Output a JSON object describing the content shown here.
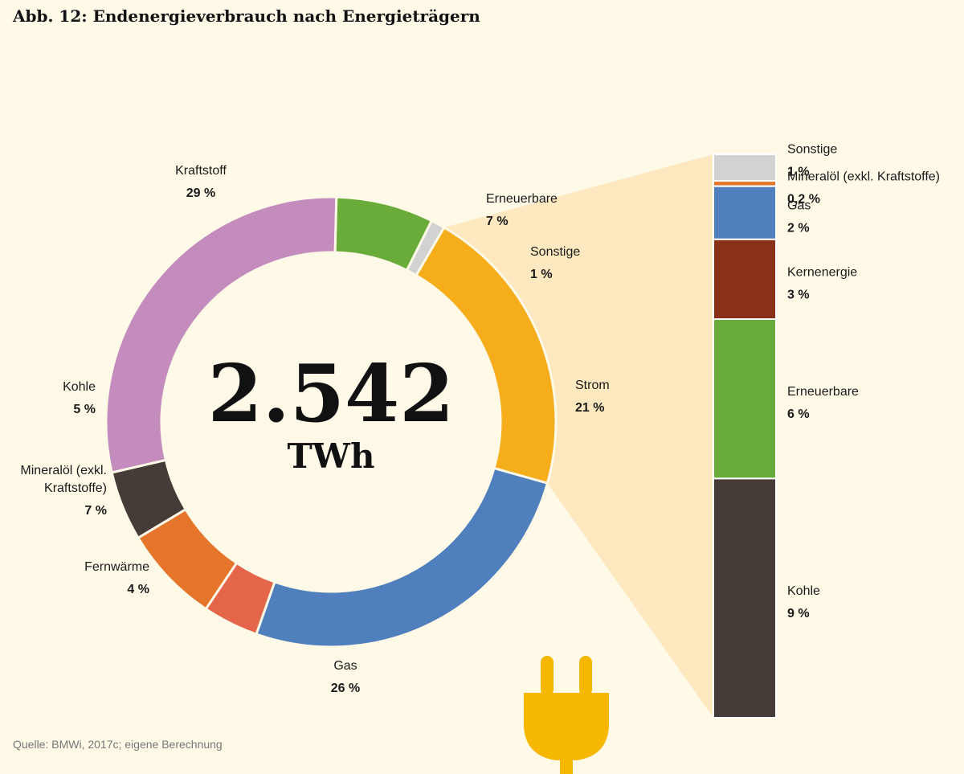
{
  "title": "Abb. 12: Endenergieverbrauch nach Energieträgern",
  "source": "Quelle: BMWi, 2017c; eigene Berechnung",
  "total": {
    "value": "2.542",
    "unit": "TWh"
  },
  "chart_data": [
    {
      "type": "pie",
      "variant": "donut",
      "slices": [
        {
          "name": "Kraftstoff",
          "value": 29,
          "label": "29 %",
          "color": "#c48cbd"
        },
        {
          "name": "Erneuerbare",
          "value": 7,
          "label": "7 %",
          "color": "#6aac3a"
        },
        {
          "name": "Sonstige",
          "value": 1,
          "label": "1 %",
          "color": "#d2d2d2"
        },
        {
          "name": "Strom",
          "value": 21,
          "label": "21 %",
          "color": "#f5ad1b"
        },
        {
          "name": "Gas",
          "value": 26,
          "label": "26 %",
          "color": "#4f7fbd"
        },
        {
          "name": "Fernwärme",
          "value": 4,
          "label": "4 %",
          "color": "#e5654a"
        },
        {
          "name": "Mineralöl (exkl. Kraftstoffe)",
          "value": 7,
          "label": "7 %",
          "color": "#e5752a"
        },
        {
          "name": "Kohle",
          "value": 5,
          "label": "5 %",
          "color": "#463c37"
        }
      ]
    },
    {
      "type": "bar",
      "variant": "stacked",
      "breakdown_of": "Strom",
      "segments": [
        {
          "name": "Sonstige",
          "value": 1,
          "label": "1 %",
          "color": "#d2d2d2"
        },
        {
          "name": "Mineralöl (exkl. Kraftstoffe)",
          "value": 0.2,
          "label": "0,2 %",
          "color": "#e5752a"
        },
        {
          "name": "Gas",
          "value": 2,
          "label": "2 %",
          "color": "#4f7fbd"
        },
        {
          "name": "Kernenergie",
          "value": 3,
          "label": "3 %",
          "color": "#8a3019"
        },
        {
          "name": "Erneuerbare",
          "value": 6,
          "label": "6 %",
          "color": "#6aac3a"
        },
        {
          "name": "Kohle",
          "value": 9,
          "label": "9 %",
          "color": "#463c37"
        }
      ]
    }
  ],
  "colors": {
    "background": "#fff9e8",
    "connector": "#fde8c0",
    "plug": "#f6b700"
  }
}
